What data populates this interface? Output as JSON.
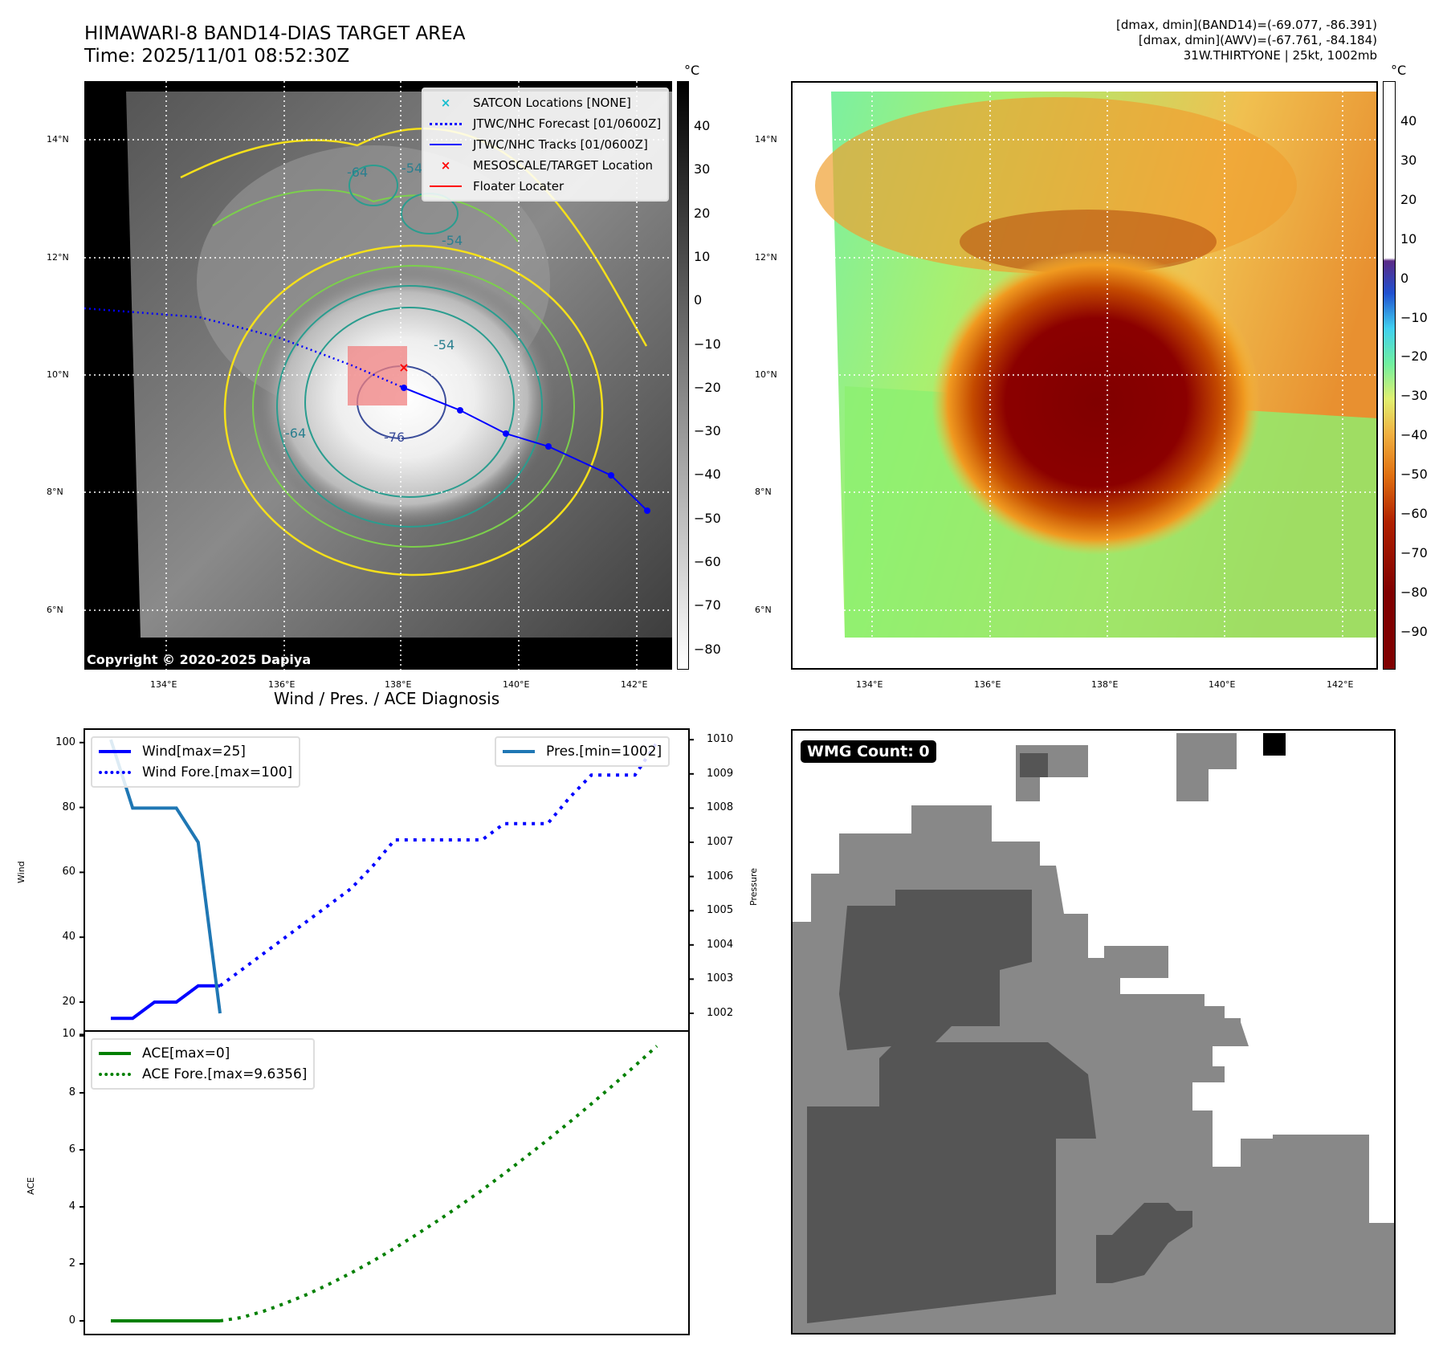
{
  "header": {
    "title": "HIMAWARI-8 BAND14-DIAS TARGET AREA",
    "time": "Time: 2025/11/01 08:52:30Z"
  },
  "info": {
    "line1": "[dmax, dmin](BAND14)=(-69.077, -86.391)",
    "line2": "[dmax, dmin](AWV)=(-67.761, -84.184)",
    "line3": "31W.THIRTYONE | 25kt, 1002mb"
  },
  "map": {
    "lat_labels": [
      "14°N",
      "12°N",
      "10°N",
      "8°N",
      "6°N"
    ],
    "lon_labels": [
      "134°E",
      "136°E",
      "138°E",
      "140°E",
      "142°E"
    ],
    "contour_labels": [
      "-64",
      "-54",
      "-54",
      "-64",
      "-76",
      "-54"
    ],
    "copyright": "Copyright © 2020-2025 Dapiya",
    "legend": [
      "SATCON Locations [NONE]",
      "JTWC/NHC Forecast [01/0600Z]",
      "JTWC/NHC Tracks [01/0600Z]",
      "MESOSCALE/TARGET Location",
      "Floater Locater"
    ]
  },
  "colorbar1": {
    "unit": "°C",
    "ticks": [
      "40",
      "30",
      "20",
      "10",
      "0",
      "−10",
      "−20",
      "−30",
      "−40",
      "−50",
      "−60",
      "−70",
      "−80"
    ]
  },
  "colorbar2": {
    "unit": "°C",
    "ticks": [
      "40",
      "30",
      "20",
      "10",
      "0",
      "−10",
      "−20",
      "−30",
      "−40",
      "−50",
      "−60",
      "−70",
      "−80",
      "−90"
    ]
  },
  "wmg": {
    "label": "WMG Count: 0"
  },
  "chart_data": [
    {
      "type": "line",
      "title": "Wind / Pres. / ACE Diagnosis",
      "ylabel": "Wind",
      "y2label": "Pressure",
      "ylim": [
        10,
        104
      ],
      "y2lim": [
        1001.6,
        1010.3
      ],
      "yticks": [
        "100",
        "80",
        "60",
        "40",
        "20",
        "10"
      ],
      "y2ticks": [
        "1010",
        "1009",
        "1008",
        "1007",
        "1006",
        "1005",
        "1004",
        "1003",
        "1002"
      ],
      "series": [
        {
          "name": "Wind[max=25]",
          "color": "#0000ff",
          "style": "solid",
          "x": [
            0,
            1,
            2,
            3,
            4,
            5
          ],
          "values": [
            15,
            15,
            20,
            20,
            25,
            25
          ]
        },
        {
          "name": "Wind Fore.[max=100]",
          "color": "#0000ff",
          "style": "dotted",
          "x": [
            5,
            6,
            7,
            8,
            9,
            10,
            11,
            12,
            13,
            14,
            15,
            16,
            17,
            18,
            19,
            20,
            21,
            22,
            23,
            24,
            25
          ],
          "values": [
            25,
            30,
            35,
            40,
            45,
            50,
            55,
            62,
            70,
            70,
            70,
            70,
            70,
            75,
            75,
            75,
            83,
            90,
            90,
            90,
            100
          ]
        },
        {
          "name": "Pres.[min=1002]",
          "color": "#1f77b4",
          "style": "solid",
          "axis": "right",
          "x": [
            0,
            1,
            2,
            3,
            4,
            5
          ],
          "values": [
            1010,
            1008,
            1008,
            1008,
            1007,
            1002
          ]
        }
      ]
    },
    {
      "type": "line",
      "ylabel": "ACE",
      "ylim": [
        -0.5,
        10
      ],
      "yticks": [
        "10",
        "8",
        "6",
        "4",
        "2",
        "0"
      ],
      "series": [
        {
          "name": "ACE[max=0]",
          "color": "#008000",
          "style": "solid",
          "x": [
            0,
            1,
            2,
            3,
            4,
            5
          ],
          "values": [
            0,
            0,
            0,
            0,
            0,
            0
          ]
        },
        {
          "name": "ACE Fore.[max=9.6356]",
          "color": "#008000",
          "style": "dotted",
          "x": [
            5,
            6,
            7,
            8,
            9,
            10,
            11,
            12,
            13,
            14,
            15,
            16,
            17,
            18,
            19,
            20,
            21,
            22,
            23,
            24,
            25
          ],
          "values": [
            0,
            0.12,
            0.34,
            0.62,
            0.93,
            1.29,
            1.68,
            2.1,
            2.55,
            3.03,
            3.53,
            4.05,
            4.59,
            5.16,
            5.75,
            6.35,
            6.97,
            7.61,
            8.27,
            8.95,
            9.64
          ]
        }
      ]
    }
  ]
}
